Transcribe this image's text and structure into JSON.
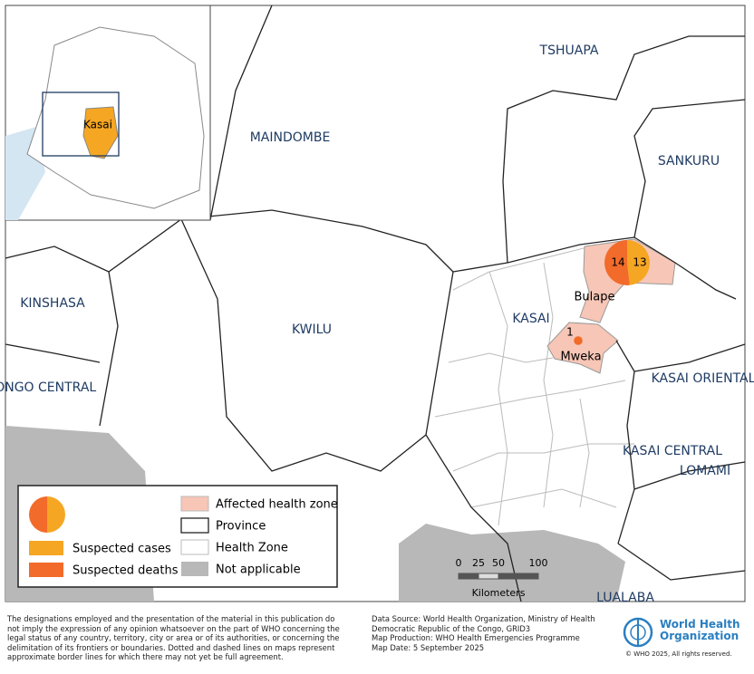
{
  "inset": {
    "label": "Kasai"
  },
  "provinces": [
    "TSHUAPA",
    "MAINDOMBE",
    "SANKURU",
    "KINSHASA",
    "KWILU",
    "KASAI",
    "KASAI ORIENTAL",
    "KONGO CENTRAL",
    "KASAI CENTRAL",
    "LOMAMI",
    "LUALABA"
  ],
  "health_zones": [
    {
      "name": "Bulape",
      "suspected_deaths": 14,
      "suspected_cases": 13
    },
    {
      "name": "Mweka",
      "suspected_deaths": 1
    }
  ],
  "legend": {
    "cases": "Suspected cases",
    "deaths": "Suspected deaths",
    "affected": "Affected health zone",
    "province": "Province",
    "health_zone": "Health Zone",
    "na": "Not applicable"
  },
  "scale": {
    "ticks": [
      0,
      25,
      50,
      100
    ],
    "unit": "Kilometers"
  },
  "footer": {
    "disclaimer": "The designations employed and the presentation of the material in this publication do not imply the expression of any opinion whatsoever on the part of WHO concerning the legal status of any country, territory, city or area or of its authorities, or concerning the delimitation of its frontiers or boundaries. Dotted and dashed lines on maps represent approximate border lines for which there may not yet be full agreement.",
    "source": [
      "Data Source: World Health Organization, Ministry of Health Democratic Republic of the Congo, GRID3",
      "Map Production: WHO Health Emergencies Programme",
      "Map Date:  5 September 2025"
    ],
    "org": [
      "World Health",
      "Organization"
    ],
    "copyright": "© WHO  2025,  All rights reserved."
  }
}
